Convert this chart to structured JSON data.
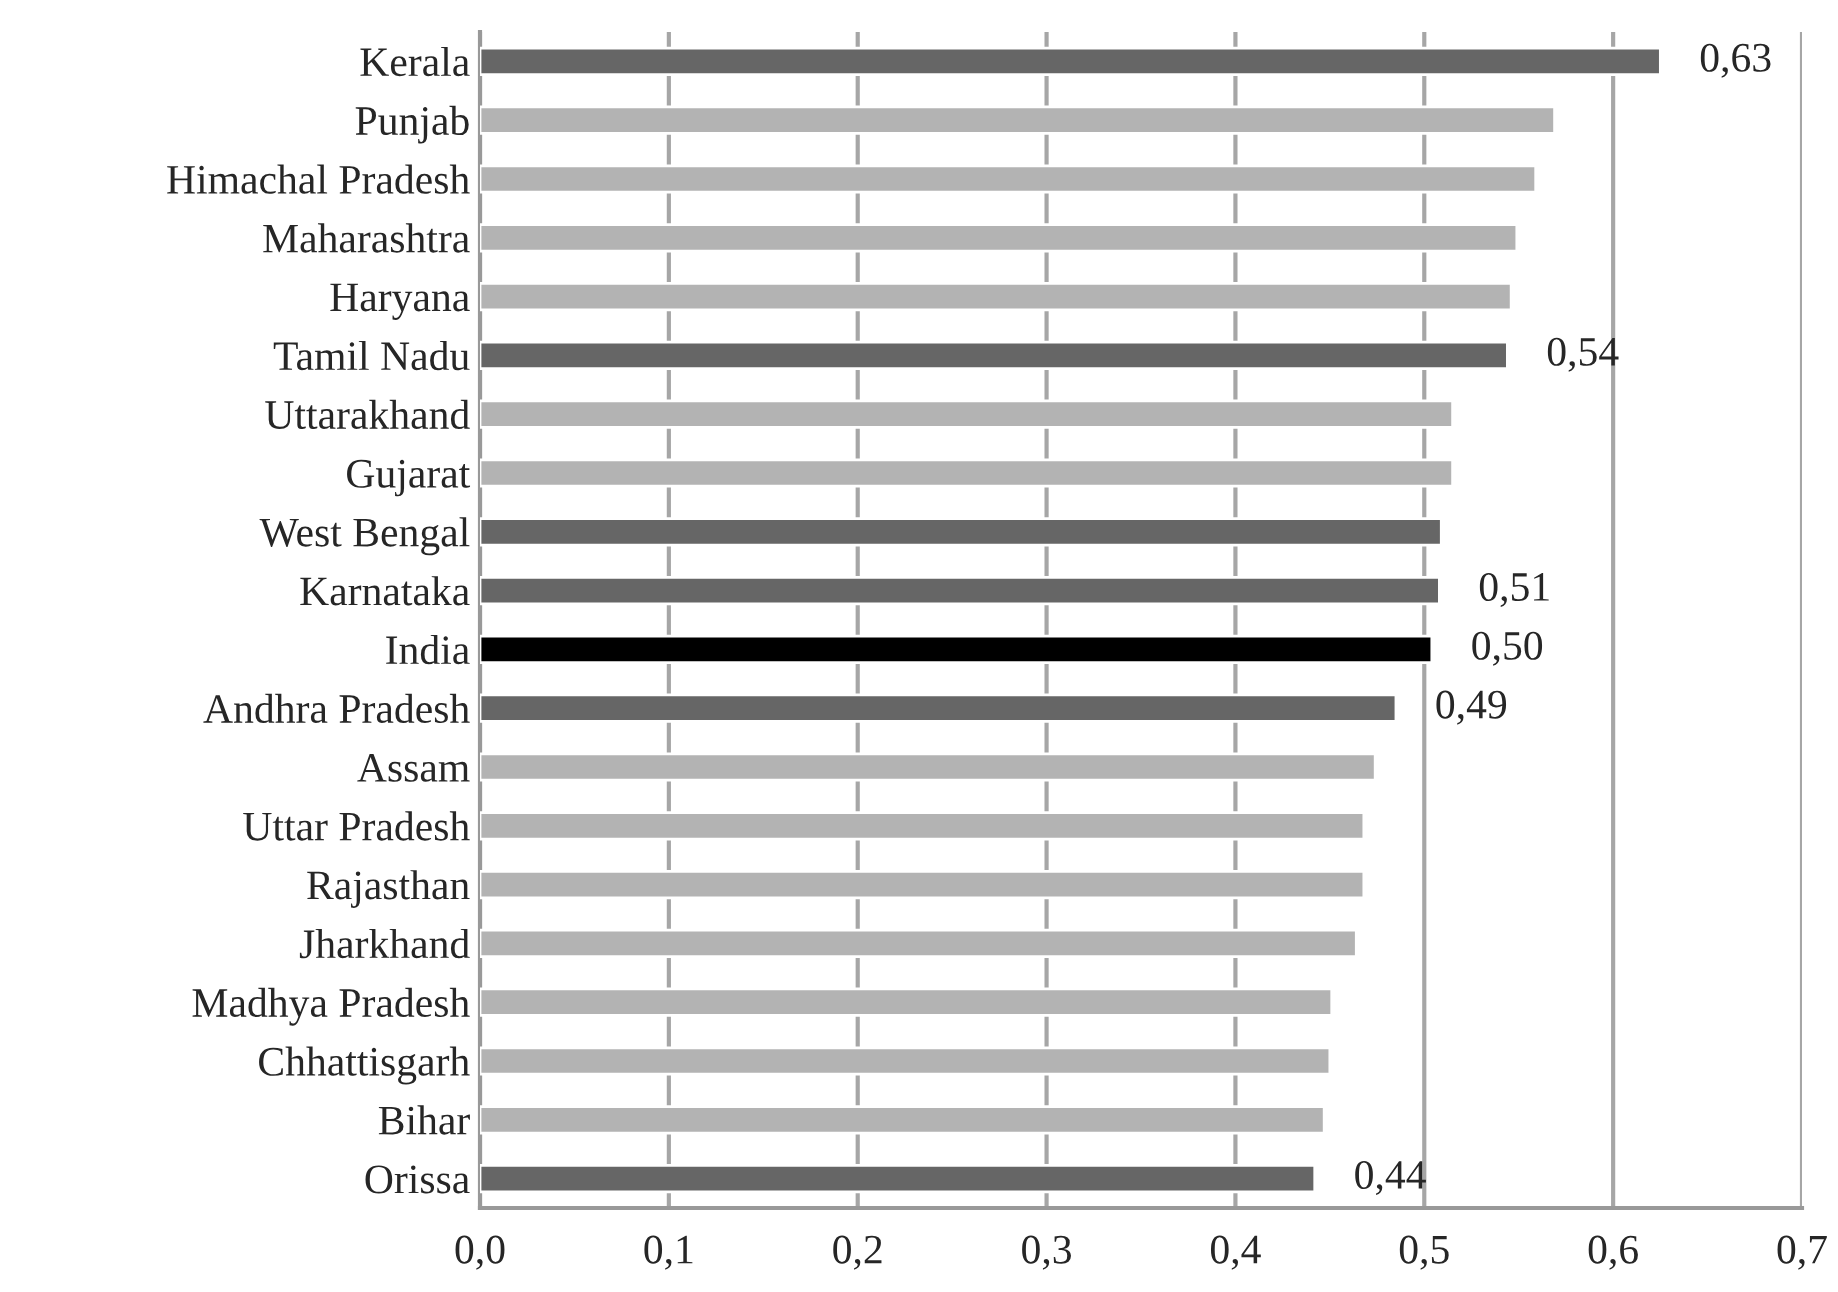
{
  "chart_data": {
    "type": "bar",
    "orientation": "horizontal",
    "categories": [
      "Kerala",
      "Punjab",
      "Himachal Pradesh",
      "Maharashtra",
      "Haryana",
      "Tamil Nadu",
      "Uttarakhand",
      "Gujarat",
      "West Bengal",
      "Karnataka",
      "India",
      "Andhra Pradesh",
      "Assam",
      "Uttar Pradesh",
      "Rajasthan",
      "Jharkhand",
      "Madhya Pradesh",
      "Chhattisgarh",
      "Bihar",
      "Orissa"
    ],
    "values": [
      0.625,
      0.569,
      0.559,
      0.549,
      0.546,
      0.544,
      0.515,
      0.515,
      0.509,
      0.508,
      0.504,
      0.485,
      0.474,
      0.468,
      0.468,
      0.464,
      0.451,
      0.45,
      0.447,
      0.442
    ],
    "colors": [
      "#666666",
      "#b3b3b3",
      "#b3b3b3",
      "#b3b3b3",
      "#b3b3b3",
      "#666666",
      "#b3b3b3",
      "#b3b3b3",
      "#666666",
      "#666666",
      "#000000",
      "#666666",
      "#b3b3b3",
      "#b3b3b3",
      "#b3b3b3",
      "#b3b3b3",
      "#b3b3b3",
      "#b3b3b3",
      "#b3b3b3",
      "#666666"
    ],
    "value_labels": [
      "0,63",
      null,
      null,
      null,
      null,
      "0,54",
      null,
      null,
      null,
      "0,51",
      "0,50",
      "0,49",
      null,
      null,
      null,
      null,
      null,
      null,
      null,
      "0,44"
    ],
    "xlim": [
      0,
      0.7
    ],
    "xticks": [
      {
        "value": 0,
        "label": "0,0"
      },
      {
        "value": 0.1,
        "label": "0,1"
      },
      {
        "value": 0.2,
        "label": "0,2"
      },
      {
        "value": 0.3,
        "label": "0,3"
      },
      {
        "value": 0.4,
        "label": "0,4"
      },
      {
        "value": 0.5,
        "label": "0,5"
      },
      {
        "value": 0.6,
        "label": "0,6"
      },
      {
        "value": 0.7,
        "label": "0,7"
      }
    ],
    "grid": "x",
    "legend": false
  }
}
